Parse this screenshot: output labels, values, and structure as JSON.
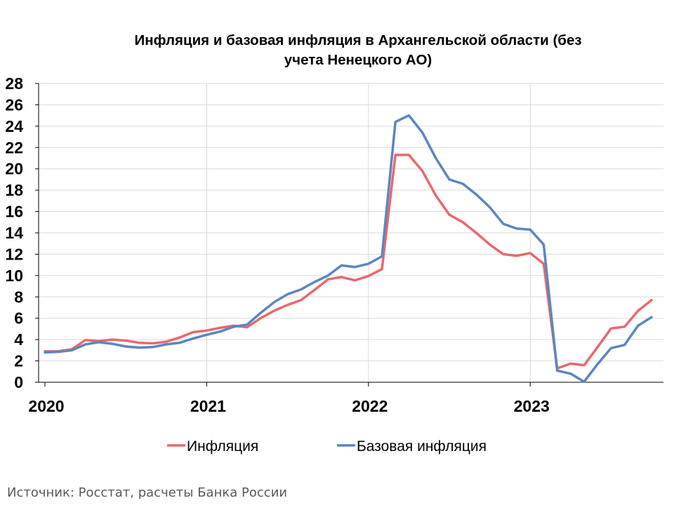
{
  "title_line1": "Инфляция и базовая инфляция в Архангельской области (без",
  "title_line2": "учета Ненецкого АО)",
  "source": "Источник: Росстат, расчеты Банка России",
  "colors": {
    "inflation": "#E8696C",
    "core": "#5B86C0",
    "grid": "#D9D9D9",
    "axis": "#000000"
  },
  "chart_data": {
    "type": "line",
    "title": "Инфляция и базовая инфляция в Архангельской области (без учета Ненецкого АО)",
    "xlabel": "",
    "ylabel": "",
    "ylim": [
      0,
      28
    ],
    "yticks": [
      0,
      2,
      4,
      6,
      8,
      10,
      12,
      14,
      16,
      18,
      20,
      22,
      24,
      26,
      28
    ],
    "xticks": [
      "2020",
      "2021",
      "2022",
      "2023"
    ],
    "grid": true,
    "legend": "bottom",
    "x": [
      "2020-01",
      "2020-02",
      "2020-03",
      "2020-04",
      "2020-05",
      "2020-06",
      "2020-07",
      "2020-08",
      "2020-09",
      "2020-10",
      "2020-11",
      "2020-12",
      "2021-01",
      "2021-02",
      "2021-03",
      "2021-04",
      "2021-05",
      "2021-06",
      "2021-07",
      "2021-08",
      "2021-09",
      "2021-10",
      "2021-11",
      "2021-12",
      "2022-01",
      "2022-02",
      "2022-03",
      "2022-04",
      "2022-05",
      "2022-06",
      "2022-07",
      "2022-08",
      "2022-09",
      "2022-10",
      "2022-11",
      "2022-12",
      "2023-01",
      "2023-02",
      "2023-03",
      "2023-04",
      "2023-05",
      "2023-06",
      "2023-07",
      "2023-08",
      "2023-09",
      "2023-10"
    ],
    "series": [
      {
        "name": "Инфляция",
        "values": [
          2.9,
          2.9,
          3.1,
          3.95,
          3.85,
          4.0,
          3.9,
          3.7,
          3.65,
          3.8,
          4.2,
          4.7,
          4.85,
          5.1,
          5.3,
          5.15,
          6.0,
          6.7,
          7.25,
          7.7,
          8.65,
          9.65,
          9.85,
          9.55,
          9.95,
          10.6,
          21.3,
          21.3,
          19.8,
          17.5,
          15.7,
          15.0,
          14.0,
          12.9,
          12.0,
          11.85,
          12.1,
          11.1,
          1.3,
          1.75,
          1.6,
          3.3,
          5.05,
          5.2,
          6.7,
          7.7
        ]
      },
      {
        "name": "Базовая инфляция",
        "values": [
          2.8,
          2.85,
          3.0,
          3.55,
          3.75,
          3.6,
          3.35,
          3.25,
          3.3,
          3.55,
          3.7,
          4.1,
          4.45,
          4.75,
          5.2,
          5.4,
          6.5,
          7.5,
          8.25,
          8.7,
          9.4,
          10.0,
          10.95,
          10.8,
          11.1,
          11.8,
          24.4,
          25.0,
          23.4,
          21.0,
          19.0,
          18.6,
          17.6,
          16.4,
          14.85,
          14.4,
          14.3,
          12.9,
          1.1,
          0.8,
          0.05,
          1.7,
          3.2,
          3.5,
          5.3,
          6.1
        ]
      }
    ]
  }
}
